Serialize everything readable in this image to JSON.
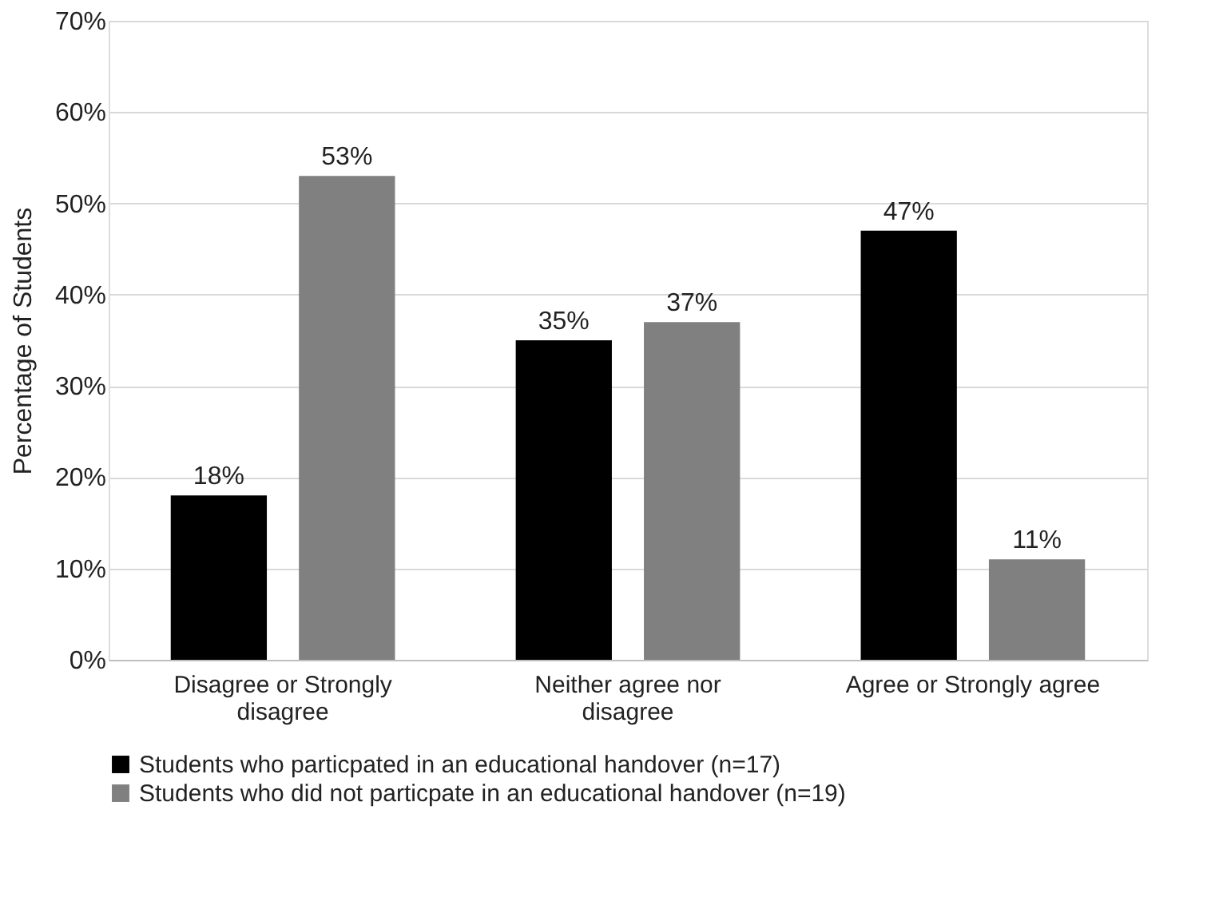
{
  "chart_data": {
    "type": "bar",
    "ylabel": "Percentage of Students",
    "categories": [
      "Disagree or Strongly disagree",
      "Neither agree nor disagree",
      "Agree or Strongly agree"
    ],
    "series": [
      {
        "name": "Students who particpated in an educational handover (n=17)",
        "color": "#000000",
        "values": [
          18,
          35,
          47
        ],
        "value_labels": [
          "18%",
          "35%",
          "47%"
        ]
      },
      {
        "name": "Students who did not particpate in an educational handover (n=19)",
        "color": "#808080",
        "values": [
          53,
          37,
          11
        ],
        "value_labels": [
          "53%",
          "37%",
          "11%"
        ]
      }
    ],
    "ylim": [
      0,
      70
    ],
    "yticks": [
      {
        "value": 0,
        "label": "0%"
      },
      {
        "value": 10,
        "label": "10%"
      },
      {
        "value": 20,
        "label": "20%"
      },
      {
        "value": 30,
        "label": "30%"
      },
      {
        "value": 40,
        "label": "40%"
      },
      {
        "value": 50,
        "label": "50%"
      },
      {
        "value": 60,
        "label": "60%"
      },
      {
        "value": 70,
        "label": "70%"
      }
    ],
    "grid": "y",
    "legend": "bottom"
  }
}
